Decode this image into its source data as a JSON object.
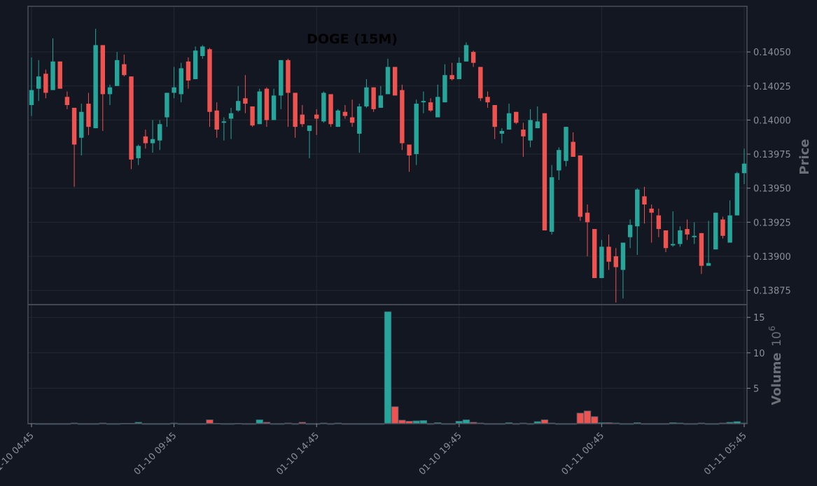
{
  "colors": {
    "background": "#131722",
    "panel_border": "#4a4e58",
    "grid": "#242833",
    "up": "#26a69a",
    "down": "#ef5350",
    "text": "#8a8f99",
    "axis_title": "#6b6f78",
    "title": "#000000"
  },
  "chart_data": {
    "type": "candlestick",
    "title": "DOGE (15M)",
    "price_axis": {
      "label": "Price",
      "ticks": [
        "0.13875",
        "0.13900",
        "0.13925",
        "0.13950",
        "0.13975",
        "0.14000",
        "0.14025",
        "0.14050"
      ],
      "ylim": [
        0.138645,
        0.140835
      ]
    },
    "volume_axis": {
      "label": "Volume",
      "multiplier": "10",
      "exponent": "6",
      "ticks": [
        "5",
        "10",
        "15"
      ],
      "ylim": [
        0,
        16.8
      ]
    },
    "x_ticks": [
      "01-10 04:45",
      "01-10 09:45",
      "01-10 14:45",
      "01-10 19:45",
      "01-11 00:45",
      "01-11 05:45"
    ],
    "candles": [
      [
        0.14011,
        0.14046,
        0.14003,
        0.14022,
        0.05
      ],
      [
        0.14023,
        0.14044,
        0.14014,
        0.14032,
        0.0
      ],
      [
        0.14034,
        0.14037,
        0.14016,
        0.1402,
        0.0
      ],
      [
        0.14022,
        0.1406,
        0.14022,
        0.14043,
        0.0
      ],
      [
        0.14043,
        0.14043,
        0.14024,
        0.14023,
        0.0
      ],
      [
        0.14017,
        0.14021,
        0.14008,
        0.14011,
        0.0
      ],
      [
        0.14009,
        0.14009,
        0.13951,
        0.13982,
        0.1
      ],
      [
        0.13987,
        0.14012,
        0.13974,
        0.14006,
        0.0
      ],
      [
        0.14012,
        0.1402,
        0.13989,
        0.13995,
        0.0
      ],
      [
        0.13994,
        0.14067,
        0.13994,
        0.14055,
        0.0
      ],
      [
        0.14055,
        0.14055,
        0.13992,
        0.14019,
        0.1
      ],
      [
        0.14019,
        0.14026,
        0.14011,
        0.14024,
        0.0
      ],
      [
        0.14025,
        0.1405,
        0.14025,
        0.14044,
        0.0
      ],
      [
        0.14041,
        0.14048,
        0.14032,
        0.14033,
        0.05
      ],
      [
        0.14032,
        0.14032,
        0.13964,
        0.13971,
        0.05
      ],
      [
        0.13972,
        0.13982,
        0.13967,
        0.13981,
        0.2
      ],
      [
        0.13988,
        0.13993,
        0.13979,
        0.13983,
        0.0
      ],
      [
        0.13983,
        0.14,
        0.13976,
        0.13986,
        0.0
      ],
      [
        0.13985,
        0.14,
        0.13978,
        0.13997,
        0.0
      ],
      [
        0.14002,
        0.1402,
        0.13995,
        0.1402,
        0.0
      ],
      [
        0.1402,
        0.14039,
        0.14016,
        0.14024,
        0.1
      ],
      [
        0.14019,
        0.14042,
        0.14013,
        0.14038,
        0.0
      ],
      [
        0.14043,
        0.14046,
        0.14023,
        0.14029,
        0.0
      ],
      [
        0.1403,
        0.14054,
        0.1403,
        0.14051,
        0.0
      ],
      [
        0.14047,
        0.14055,
        0.14045,
        0.14054,
        0.0
      ],
      [
        0.14052,
        0.14053,
        0.13995,
        0.14006,
        0.55
      ],
      [
        0.14007,
        0.14013,
        0.13987,
        0.13993,
        0.05
      ],
      [
        0.13998,
        0.14002,
        0.13985,
        0.13999,
        0.0
      ],
      [
        0.14001,
        0.14009,
        0.13986,
        0.14005,
        0.0
      ],
      [
        0.14007,
        0.14025,
        0.14006,
        0.14014,
        0.05
      ],
      [
        0.14016,
        0.14033,
        0.14005,
        0.14012,
        0.0
      ],
      [
        0.1401,
        0.1401,
        0.13995,
        0.13996,
        0.0
      ],
      [
        0.13997,
        0.14023,
        0.13997,
        0.14021,
        0.55
      ],
      [
        0.14023,
        0.14024,
        0.13995,
        0.14,
        0.2
      ],
      [
        0.14,
        0.14023,
        0.14,
        0.14018,
        0.0
      ],
      [
        0.14018,
        0.14044,
        0.14008,
        0.14044,
        0.0
      ],
      [
        0.14044,
        0.14045,
        0.13995,
        0.1402,
        0.1
      ],
      [
        0.1402,
        0.1402,
        0.13987,
        0.13995,
        0.0
      ],
      [
        0.14004,
        0.14011,
        0.13995,
        0.13997,
        0.2
      ],
      [
        0.13992,
        0.13995,
        0.13972,
        0.13996,
        0.0
      ],
      [
        0.14004,
        0.14008,
        0.13989,
        0.14001,
        0.0
      ],
      [
        0.13999,
        0.14021,
        0.13998,
        0.1402,
        0.1
      ],
      [
        0.14019,
        0.14019,
        0.13995,
        0.13997,
        0.0
      ],
      [
        0.13995,
        0.14008,
        0.13995,
        0.14007,
        0.1
      ],
      [
        0.14006,
        0.14011,
        0.14001,
        0.14003,
        0.0
      ],
      [
        0.14002,
        0.14015,
        0.13995,
        0.13998,
        0.0
      ],
      [
        0.1399,
        0.14012,
        0.13976,
        0.1401,
        0.0
      ],
      [
        0.1401,
        0.1403,
        0.14009,
        0.14024,
        0.0
      ],
      [
        0.14024,
        0.14024,
        0.14006,
        0.14008,
        0.0
      ],
      [
        0.14009,
        0.14025,
        0.14009,
        0.14018,
        0.0
      ],
      [
        0.14019,
        0.14045,
        0.14019,
        0.14039,
        15.8
      ],
      [
        0.14039,
        0.14039,
        0.14019,
        0.14018,
        2.4
      ],
      [
        0.14022,
        0.14026,
        0.13978,
        0.13983,
        0.5
      ],
      [
        0.13982,
        0.13982,
        0.13962,
        0.13974,
        0.35
      ],
      [
        0.13975,
        0.14015,
        0.13967,
        0.14012,
        0.4
      ],
      [
        0.14013,
        0.14021,
        0.14005,
        0.14014,
        0.45
      ],
      [
        0.14013,
        0.14016,
        0.14006,
        0.14007,
        0.0
      ],
      [
        0.14002,
        0.14026,
        0.14002,
        0.14017,
        0.15
      ],
      [
        0.14013,
        0.14041,
        0.14013,
        0.14033,
        0.0
      ],
      [
        0.14033,
        0.14042,
        0.14029,
        0.1403,
        0.0
      ],
      [
        0.1403,
        0.14046,
        0.1403,
        0.14042,
        0.35
      ],
      [
        0.14043,
        0.14057,
        0.14043,
        0.14055,
        0.55
      ],
      [
        0.1405,
        0.14051,
        0.14039,
        0.14042,
        0.2
      ],
      [
        0.14039,
        0.14039,
        0.14014,
        0.14016,
        0.1
      ],
      [
        0.14017,
        0.14021,
        0.14009,
        0.14013,
        0.0
      ],
      [
        0.14011,
        0.14011,
        0.13986,
        0.13995,
        0.0
      ],
      [
        0.1399,
        0.13994,
        0.13983,
        0.13992,
        0.0
      ],
      [
        0.13993,
        0.14012,
        0.13993,
        0.14005,
        0.15
      ],
      [
        0.14006,
        0.14006,
        0.13997,
        0.13998,
        0.0
      ],
      [
        0.13993,
        0.13998,
        0.13973,
        0.13988,
        0.1
      ],
      [
        0.13985,
        0.14008,
        0.1398,
        0.14,
        0.0
      ],
      [
        0.13994,
        0.1401,
        0.13994,
        0.13999,
        0.3
      ],
      [
        0.14005,
        0.14005,
        0.13919,
        0.13919,
        0.55
      ],
      [
        0.13918,
        0.13967,
        0.13916,
        0.13958,
        0.1
      ],
      [
        0.13963,
        0.1398,
        0.13956,
        0.13978,
        0.0
      ],
      [
        0.1397,
        0.13995,
        0.13966,
        0.13995,
        0.0
      ],
      [
        0.13984,
        0.13991,
        0.13974,
        0.13973,
        0.0
      ],
      [
        0.13974,
        0.13974,
        0.13926,
        0.13929,
        1.5
      ],
      [
        0.13932,
        0.13938,
        0.139,
        0.13925,
        1.8
      ],
      [
        0.1392,
        0.1392,
        0.13884,
        0.13884,
        1.0
      ],
      [
        0.13884,
        0.13912,
        0.13884,
        0.13907,
        0.15
      ],
      [
        0.13907,
        0.13916,
        0.1389,
        0.13896,
        0.15
      ],
      [
        0.139,
        0.13906,
        0.13866,
        0.13892,
        0.1
      ],
      [
        0.1389,
        0.1391,
        0.13869,
        0.1391,
        0.0
      ],
      [
        0.13914,
        0.13927,
        0.13906,
        0.13923,
        0.0
      ],
      [
        0.13922,
        0.1395,
        0.13901,
        0.13949,
        0.15
      ],
      [
        0.13944,
        0.13951,
        0.13924,
        0.13938,
        0.0
      ],
      [
        0.13935,
        0.13938,
        0.1391,
        0.13932,
        0.0
      ],
      [
        0.1393,
        0.13935,
        0.13914,
        0.1392,
        0.0
      ],
      [
        0.13919,
        0.13919,
        0.13903,
        0.13906,
        0.0
      ],
      [
        0.13908,
        0.13933,
        0.13907,
        0.13909,
        0.15
      ],
      [
        0.13909,
        0.13922,
        0.13907,
        0.13919,
        0.1
      ],
      [
        0.1392,
        0.13927,
        0.13912,
        0.13916,
        0.0
      ],
      [
        0.13914,
        0.13925,
        0.13909,
        0.13915,
        0.0
      ],
      [
        0.13917,
        0.13917,
        0.13887,
        0.13893,
        0.1
      ],
      [
        0.13893,
        0.13926,
        0.13893,
        0.13895,
        0.0
      ],
      [
        0.13905,
        0.13932,
        0.13905,
        0.13932,
        0.0
      ],
      [
        0.13927,
        0.13929,
        0.13913,
        0.13915,
        0.1
      ],
      [
        0.1391,
        0.13941,
        0.1391,
        0.1393,
        0.2
      ],
      [
        0.1393,
        0.13962,
        0.1393,
        0.13961,
        0.3
      ],
      [
        0.13961,
        0.13979,
        0.13953,
        0.13968,
        0.1
      ]
    ]
  }
}
